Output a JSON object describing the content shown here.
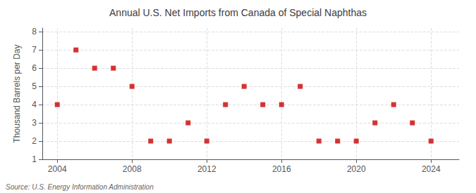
{
  "chart_data": {
    "type": "scatter",
    "title": "Annual U.S. Net Imports from Canada of Special Naphthas",
    "ylabel": "Thousand Barrels per Day",
    "annotations": [
      "Source: U.S. Energy Information Administration"
    ],
    "x": [
      2004,
      2005,
      2006,
      2007,
      2008,
      2009,
      2010,
      2011,
      2012,
      2013,
      2014,
      2015,
      2016,
      2017,
      2018,
      2019,
      2020,
      2021,
      2022,
      2023,
      2024
    ],
    "values": [
      4,
      7,
      6,
      6,
      5,
      2,
      2,
      3,
      2,
      4,
      5,
      4,
      4,
      5,
      2,
      2,
      2,
      3,
      4,
      3,
      2
    ],
    "color": "#cc0000",
    "marker": "square",
    "xlim": [
      2003.2,
      2025.5
    ],
    "xticks": [
      2004,
      2008,
      2012,
      2016,
      2020,
      2024
    ],
    "ylim": [
      1,
      8.2
    ],
    "yticks": [
      1,
      2,
      3,
      4,
      5,
      6,
      7,
      8
    ],
    "grid": true
  }
}
